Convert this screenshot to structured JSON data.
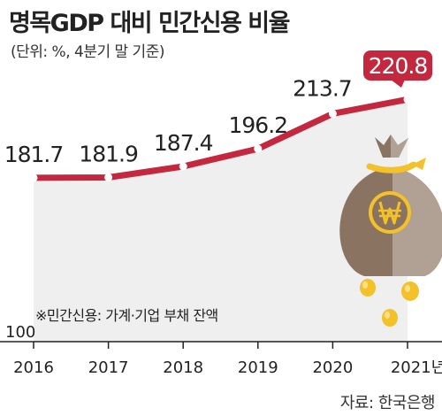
{
  "header": {
    "title": "명목GDP 대비 민간신용 비율",
    "subtitle": "(단위: %, 4분기 말 기준)"
  },
  "footer": {
    "source": "자료: 한국은행"
  },
  "colors": {
    "line": "#c3283f",
    "area": "#efefef",
    "highlight_bg": "#c3283f",
    "highlight_text": "#ffffff",
    "axis": "#222222"
  },
  "icon": "money-bag-won-icon",
  "chart_data": {
    "type": "line",
    "x": [
      "2016",
      "2017",
      "2018",
      "2019",
      "2020",
      "2021"
    ],
    "x_tick_labels": [
      "2016",
      "2017",
      "2018",
      "2019",
      "2020",
      "2021년"
    ],
    "values": [
      181.7,
      181.9,
      187.4,
      196.2,
      213.7,
      220.8
    ],
    "value_labels": [
      "181.7",
      "181.9",
      "187.4",
      "196.2",
      "213.7",
      "220.8"
    ],
    "highlight_index": 5,
    "ylim": [
      100,
      230
    ],
    "y_tick_labels": [
      "100"
    ],
    "annotation": "※민간신용: 가계·기업 부채 잔액",
    "grid": false,
    "legend": "none"
  }
}
